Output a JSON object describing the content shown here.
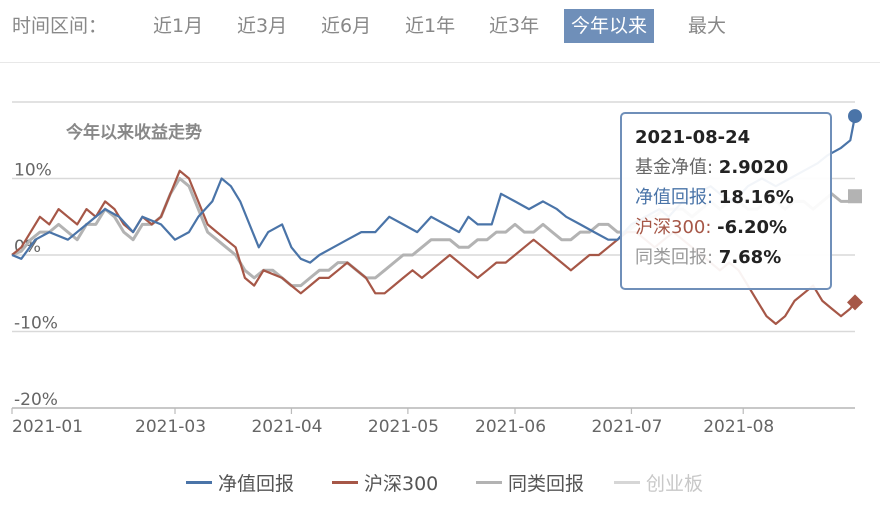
{
  "range_selector": {
    "label": "时间区间：",
    "options": [
      "近1月",
      "近3月",
      "近6月",
      "近1年",
      "近3年",
      "今年以来",
      "最大"
    ],
    "active": "今年以来"
  },
  "colors": {
    "fund": "#4a74a8",
    "hs300": "#a65747",
    "category": "#b3b3b3",
    "chinext": "#d6d6d6",
    "grid": "#d9d9d9",
    "accent": "#6f8fb9"
  },
  "tooltip": {
    "date": "2021-08-24",
    "rows": [
      {
        "label": "基金净值",
        "sep": ": ",
        "value": "2.9020",
        "color": "#222222"
      },
      {
        "label": "净值回报",
        "sep": ": ",
        "value": "18.16%",
        "color": "#4a74a8"
      },
      {
        "label": "沪深300",
        "sep": ": ",
        "value": "-6.20%",
        "color": "#a65747"
      },
      {
        "label": "同类回报",
        "sep": ": ",
        "value": "7.68%",
        "color": "#9a9a9a"
      }
    ]
  },
  "chart_data": {
    "type": "line",
    "title": "今年以来收益走势",
    "xlabel": "",
    "ylabel": "",
    "ylim": [
      -20,
      20
    ],
    "yticks": [
      10,
      0,
      -10,
      -20
    ],
    "ytick_labels": [
      "10%",
      "0%",
      "-10%",
      "-20%"
    ],
    "xticks": [
      "2021-01",
      "2021-03",
      "2021-04",
      "2021-05",
      "2021-06",
      "2021-07",
      "2021-08"
    ],
    "grid": true,
    "legend_position": "bottom",
    "series": [
      {
        "name": "净值回报",
        "points": [
          [
            0,
            0
          ],
          [
            2,
            -0.5
          ],
          [
            5,
            2
          ],
          [
            8,
            3
          ],
          [
            12,
            2
          ],
          [
            16,
            4
          ],
          [
            20,
            6
          ],
          [
            23,
            5
          ],
          [
            26,
            3
          ],
          [
            28,
            5
          ],
          [
            32,
            4
          ],
          [
            35,
            2
          ],
          [
            38,
            3
          ],
          [
            40,
            5
          ],
          [
            43,
            7
          ],
          [
            45,
            10
          ],
          [
            47,
            9
          ],
          [
            49,
            7
          ],
          [
            51,
            4
          ],
          [
            53,
            1
          ],
          [
            55,
            3
          ],
          [
            58,
            4
          ],
          [
            60,
            1
          ],
          [
            62,
            -0.5
          ],
          [
            64,
            -1
          ],
          [
            66,
            0
          ],
          [
            69,
            1
          ],
          [
            72,
            2
          ],
          [
            75,
            3
          ],
          [
            78,
            3
          ],
          [
            81,
            5
          ],
          [
            84,
            4
          ],
          [
            87,
            3
          ],
          [
            90,
            5
          ],
          [
            93,
            4
          ],
          [
            96,
            3
          ],
          [
            98,
            5
          ],
          [
            100,
            4
          ],
          [
            103,
            4
          ],
          [
            105,
            8
          ],
          [
            108,
            7
          ],
          [
            111,
            6
          ],
          [
            114,
            7
          ],
          [
            117,
            6
          ],
          [
            119,
            5
          ],
          [
            122,
            4
          ],
          [
            125,
            3
          ],
          [
            128,
            2
          ],
          [
            130,
            2
          ],
          [
            133,
            4
          ],
          [
            136,
            5
          ],
          [
            139,
            6
          ],
          [
            141,
            5
          ],
          [
            144,
            7
          ],
          [
            147,
            8
          ],
          [
            150,
            9
          ],
          [
            152,
            8
          ],
          [
            155,
            7
          ],
          [
            158,
            9
          ],
          [
            161,
            10
          ],
          [
            164,
            9
          ],
          [
            167,
            10
          ],
          [
            170,
            11
          ],
          [
            173,
            12
          ],
          [
            175,
            13
          ],
          [
            178,
            14
          ],
          [
            180,
            15
          ],
          [
            181,
            18.16
          ]
        ]
      },
      {
        "name": "沪深300",
        "points": [
          [
            0,
            0
          ],
          [
            2,
            1
          ],
          [
            4,
            3
          ],
          [
            6,
            5
          ],
          [
            8,
            4
          ],
          [
            10,
            6
          ],
          [
            12,
            5
          ],
          [
            14,
            4
          ],
          [
            16,
            6
          ],
          [
            18,
            5
          ],
          [
            20,
            7
          ],
          [
            22,
            6
          ],
          [
            24,
            4
          ],
          [
            26,
            3
          ],
          [
            28,
            5
          ],
          [
            30,
            4
          ],
          [
            32,
            5
          ],
          [
            34,
            8
          ],
          [
            36,
            11
          ],
          [
            38,
            10
          ],
          [
            40,
            7
          ],
          [
            42,
            4
          ],
          [
            44,
            3
          ],
          [
            46,
            2
          ],
          [
            48,
            1
          ],
          [
            50,
            -3
          ],
          [
            52,
            -4
          ],
          [
            54,
            -2
          ],
          [
            56,
            -2.5
          ],
          [
            58,
            -3
          ],
          [
            60,
            -4
          ],
          [
            62,
            -5
          ],
          [
            64,
            -4
          ],
          [
            66,
            -3
          ],
          [
            68,
            -3
          ],
          [
            70,
            -2
          ],
          [
            72,
            -1
          ],
          [
            74,
            -2
          ],
          [
            76,
            -3
          ],
          [
            78,
            -5
          ],
          [
            80,
            -5
          ],
          [
            82,
            -4
          ],
          [
            84,
            -3
          ],
          [
            86,
            -2
          ],
          [
            88,
            -3
          ],
          [
            90,
            -2
          ],
          [
            92,
            -1
          ],
          [
            94,
            0
          ],
          [
            96,
            -1
          ],
          [
            98,
            -2
          ],
          [
            100,
            -3
          ],
          [
            102,
            -2
          ],
          [
            104,
            -1
          ],
          [
            106,
            -1
          ],
          [
            108,
            0
          ],
          [
            110,
            1
          ],
          [
            112,
            2
          ],
          [
            114,
            1
          ],
          [
            116,
            0
          ],
          [
            118,
            -1
          ],
          [
            120,
            -2
          ],
          [
            122,
            -1
          ],
          [
            124,
            0
          ],
          [
            126,
            0
          ],
          [
            128,
            1
          ],
          [
            130,
            2
          ],
          [
            132,
            3
          ],
          [
            134,
            3
          ],
          [
            136,
            2
          ],
          [
            138,
            1
          ],
          [
            140,
            2
          ],
          [
            142,
            3
          ],
          [
            144,
            2
          ],
          [
            146,
            1
          ],
          [
            148,
            0
          ],
          [
            150,
            -1
          ],
          [
            152,
            -2
          ],
          [
            154,
            -1
          ],
          [
            156,
            -2
          ],
          [
            158,
            -4
          ],
          [
            160,
            -6
          ],
          [
            162,
            -8
          ],
          [
            164,
            -9
          ],
          [
            166,
            -8
          ],
          [
            168,
            -6
          ],
          [
            170,
            -5
          ],
          [
            172,
            -4
          ],
          [
            174,
            -6
          ],
          [
            176,
            -7
          ],
          [
            178,
            -8
          ],
          [
            180,
            -7
          ],
          [
            181,
            -6.2
          ]
        ]
      },
      {
        "name": "同类回报",
        "points": [
          [
            0,
            0
          ],
          [
            2,
            0.5
          ],
          [
            4,
            2
          ],
          [
            6,
            3
          ],
          [
            8,
            3
          ],
          [
            10,
            4
          ],
          [
            12,
            3
          ],
          [
            14,
            2
          ],
          [
            16,
            4
          ],
          [
            18,
            4
          ],
          [
            20,
            6
          ],
          [
            22,
            5
          ],
          [
            24,
            3
          ],
          [
            26,
            2
          ],
          [
            28,
            4
          ],
          [
            30,
            4
          ],
          [
            32,
            5
          ],
          [
            34,
            8
          ],
          [
            36,
            10
          ],
          [
            38,
            9
          ],
          [
            40,
            6
          ],
          [
            42,
            3
          ],
          [
            44,
            2
          ],
          [
            46,
            1
          ],
          [
            48,
            0
          ],
          [
            50,
            -2
          ],
          [
            52,
            -3
          ],
          [
            54,
            -2
          ],
          [
            56,
            -2
          ],
          [
            58,
            -3
          ],
          [
            60,
            -4
          ],
          [
            62,
            -4
          ],
          [
            64,
            -3
          ],
          [
            66,
            -2
          ],
          [
            68,
            -2
          ],
          [
            70,
            -1
          ],
          [
            72,
            -1
          ],
          [
            74,
            -2
          ],
          [
            76,
            -3
          ],
          [
            78,
            -3
          ],
          [
            80,
            -2
          ],
          [
            82,
            -1
          ],
          [
            84,
            0
          ],
          [
            86,
            0
          ],
          [
            88,
            1
          ],
          [
            90,
            2
          ],
          [
            92,
            2
          ],
          [
            94,
            2
          ],
          [
            96,
            1
          ],
          [
            98,
            1
          ],
          [
            100,
            2
          ],
          [
            102,
            2
          ],
          [
            104,
            3
          ],
          [
            106,
            3
          ],
          [
            108,
            4
          ],
          [
            110,
            3
          ],
          [
            112,
            3
          ],
          [
            114,
            4
          ],
          [
            116,
            3
          ],
          [
            118,
            2
          ],
          [
            120,
            2
          ],
          [
            122,
            3
          ],
          [
            124,
            3
          ],
          [
            126,
            4
          ],
          [
            128,
            4
          ],
          [
            130,
            3
          ],
          [
            132,
            3
          ],
          [
            134,
            4
          ],
          [
            136,
            5
          ],
          [
            138,
            5
          ],
          [
            140,
            6
          ],
          [
            142,
            6
          ],
          [
            144,
            6
          ],
          [
            146,
            5
          ],
          [
            148,
            6
          ],
          [
            150,
            7
          ],
          [
            152,
            6
          ],
          [
            154,
            7
          ],
          [
            156,
            7
          ],
          [
            158,
            6
          ],
          [
            160,
            6
          ],
          [
            162,
            7
          ],
          [
            164,
            7
          ],
          [
            166,
            6
          ],
          [
            168,
            7
          ],
          [
            170,
            7
          ],
          [
            172,
            6
          ],
          [
            174,
            7
          ],
          [
            176,
            8
          ],
          [
            178,
            7
          ],
          [
            180,
            7
          ],
          [
            181,
            7.68
          ]
        ]
      }
    ],
    "hidden_series": [
      {
        "name": "创业板"
      }
    ],
    "x_tick_index": [
      0,
      35,
      60,
      85,
      108,
      133,
      157
    ],
    "x_count": 182
  },
  "legend": {
    "items": [
      "净值回报",
      "沪深300",
      "同类回报",
      "创业板"
    ]
  }
}
